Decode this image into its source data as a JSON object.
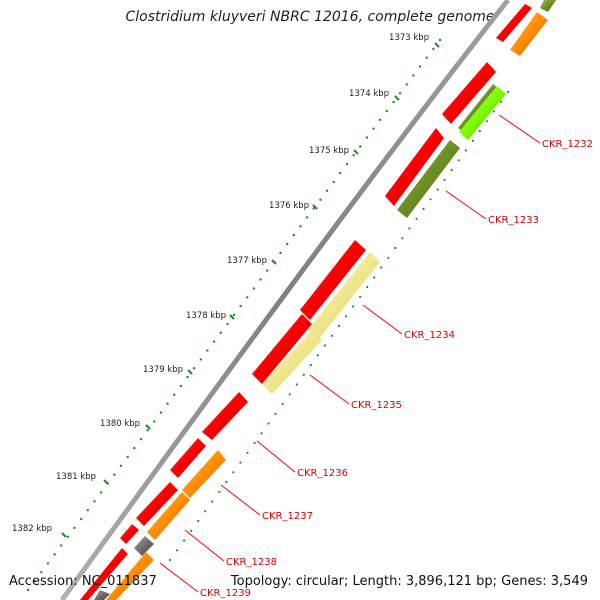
{
  "header": {
    "title": "Clostridium kluyveri NBRC 12016, complete genome"
  },
  "footer": {
    "accession": "Accession: NC_011837",
    "summary": "Topology: circular; Length: 3,896,121 bp; Genes: 3,549"
  },
  "ruler": {
    "labels": [
      "1373 kbp",
      "1374 kbp",
      "1375 kbp",
      "1376 kbp",
      "1377 kbp",
      "1378 kbp",
      "1379 kbp",
      "1380 kbp",
      "1381 kbp",
      "1382 kbp"
    ]
  },
  "genes": [
    {
      "label": "CKR_1232"
    },
    {
      "label": "CKR_1233"
    },
    {
      "label": "CKR_1234"
    },
    {
      "label": "CKR_1235"
    },
    {
      "label": "CKR_1236"
    },
    {
      "label": "CKR_1237"
    },
    {
      "label": "CKR_1238"
    },
    {
      "label": "CKR_1239"
    }
  ],
  "colors": {
    "cds_forward": "#ff0000",
    "orange_feature": "#ff8c00",
    "olive_feature": "#6b8e23",
    "lightgreen_feature": "#7cfc00",
    "pale_yellow_feature": "#f0e68c",
    "gray_feature": "#707070",
    "backbone": "#8a8a8a",
    "tick_green": "#228b22",
    "label_red": "#d40000"
  }
}
